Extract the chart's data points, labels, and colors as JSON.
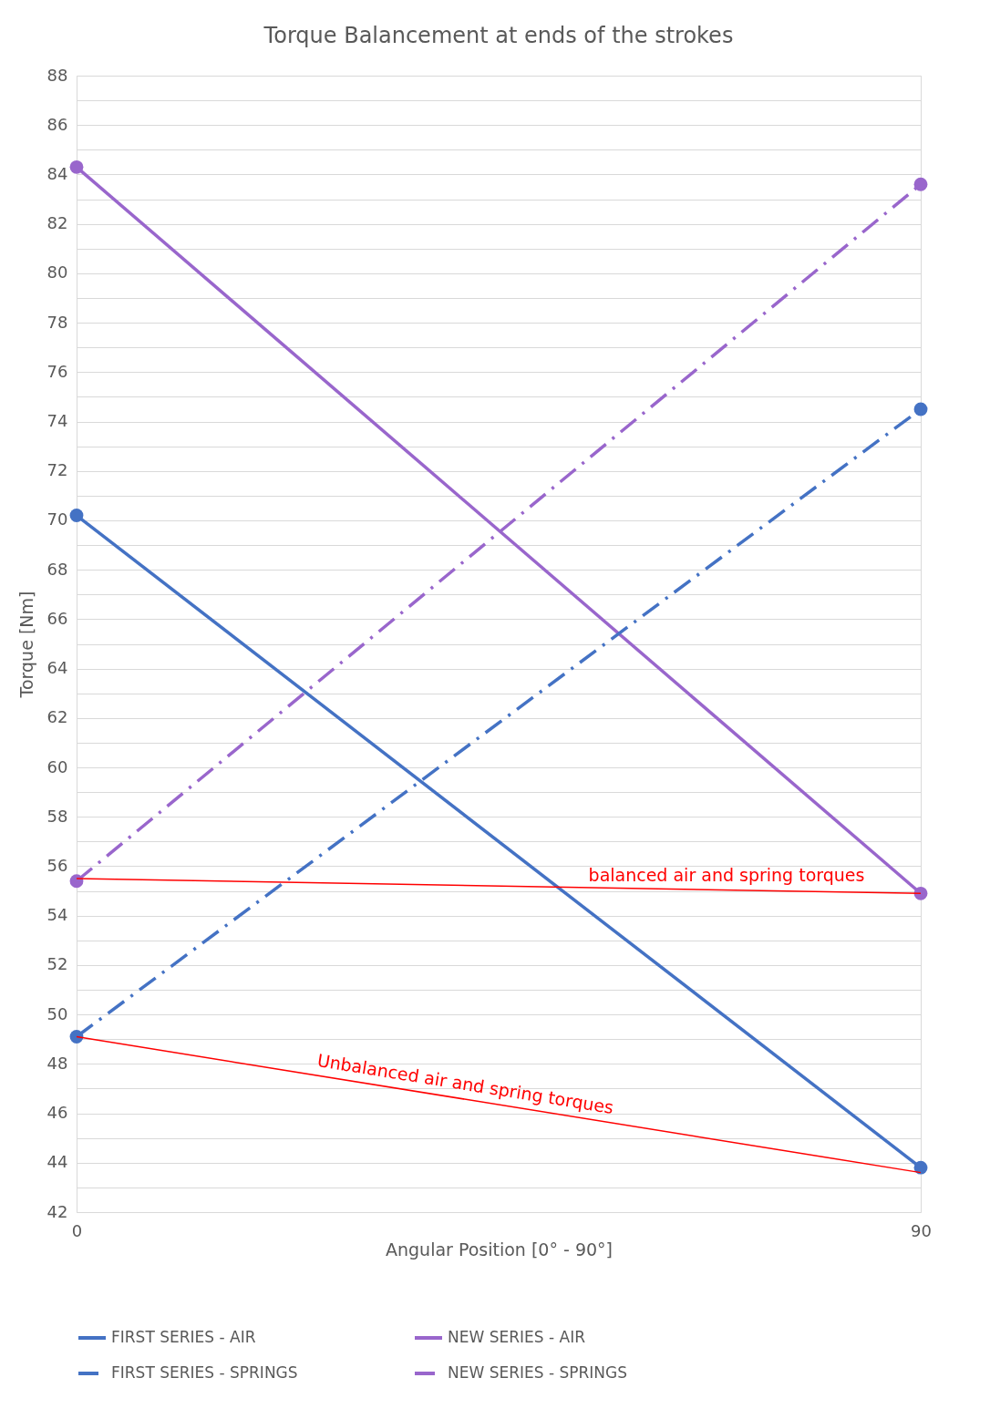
{
  "chart_data": {
    "type": "line",
    "title": "Torque Balancement at ends of the strokes",
    "xlabel": "Angular Position [0° - 90°]",
    "ylabel": "Torque [Nm]",
    "x": [
      0,
      90
    ],
    "xlim": [
      0,
      90
    ],
    "xticks": [
      0,
      90
    ],
    "ylim": [
      42,
      88
    ],
    "yticks": [
      42,
      {
        "value": 43,
        "label": null
      },
      44,
      {
        "value": 45,
        "label": null
      },
      46,
      {
        "value": 47,
        "label": null
      },
      48,
      {
        "value": 49,
        "label": null
      },
      50,
      {
        "value": 51,
        "label": null
      },
      52,
      {
        "value": 53,
        "label": null
      },
      54,
      {
        "value": 55,
        "label": null
      },
      56,
      {
        "value": 57,
        "label": null
      },
      58,
      {
        "value": 59,
        "label": null
      },
      60,
      {
        "value": 61,
        "label": null
      },
      62,
      {
        "value": 63,
        "label": null
      },
      64,
      {
        "value": 65,
        "label": null
      },
      66,
      {
        "value": 67,
        "label": null
      },
      68,
      {
        "value": 69,
        "label": null
      },
      70,
      {
        "value": 71,
        "label": null
      },
      72,
      {
        "value": 73,
        "label": null
      },
      74,
      {
        "value": 75,
        "label": null
      },
      76,
      {
        "value": 77,
        "label": null
      },
      78,
      {
        "value": 79,
        "label": null
      },
      80,
      {
        "value": 81,
        "label": null
      },
      82,
      {
        "value": 83,
        "label": null
      },
      84,
      {
        "value": 85,
        "label": null
      },
      86,
      {
        "value": 87,
        "label": null
      },
      88
    ],
    "grid": "y",
    "legend": "bottom",
    "marker": "circle",
    "series": [
      {
        "name": "FIRST SERIES - AIR",
        "color": "#4472c4",
        "values": [
          70.2,
          43.8
        ],
        "line_style": "solid"
      },
      {
        "name": "NEW SERIES - AIR",
        "color": "#9966cc",
        "values": [
          84.3,
          54.9
        ],
        "line_style": "solid"
      },
      {
        "name": "FIRST SERIES - SPRINGS",
        "color": "#4472c4",
        "values": [
          49.1,
          74.5
        ],
        "line_style": "dashed"
      },
      {
        "name": "NEW SERIES - SPRINGS",
        "color": "#9966cc",
        "values": [
          55.4,
          83.6
        ],
        "line_style": "dashed"
      },
      {
        "color": "#ff0000",
        "values": [
          55.5,
          54.9
        ],
        "marker": "none",
        "line_style": "solid"
      },
      {
        "color": "#ff0000",
        "values": [
          49.1,
          43.6
        ],
        "marker": "none",
        "line_style": "solid"
      }
    ],
    "annotations": [
      {
        "text": "balanced air and spring torques",
        "x": 69.3,
        "y": 55.04
      },
      {
        "text": "Unbalanced air and spring torques",
        "x": 41.2,
        "y": 46.58
      }
    ]
  }
}
